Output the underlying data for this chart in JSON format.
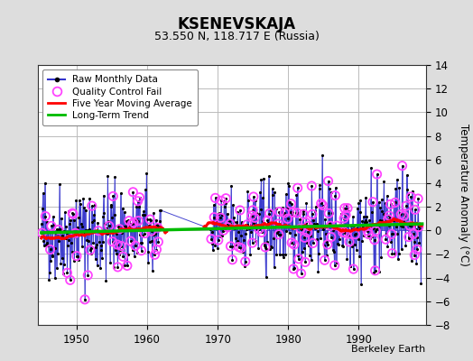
{
  "title": "KSENEVSKAJA",
  "subtitle": "53.550 N, 118.717 E (Russia)",
  "ylabel": "Temperature Anomaly (°C)",
  "credit": "Berkeley Earth",
  "ylim": [
    -8,
    14
  ],
  "yticks": [
    -8,
    -6,
    -4,
    -2,
    0,
    2,
    4,
    6,
    8,
    10,
    12,
    14
  ],
  "xlim": [
    1944.5,
    1999.5
  ],
  "xticks": [
    1950,
    1960,
    1970,
    1980,
    1990
  ],
  "start_year": 1945,
  "end_year": 1998,
  "gap_start": 1962.0,
  "gap_end": 1969.0,
  "colors": {
    "raw_line": "#3333cc",
    "raw_dot": "#000000",
    "qc_fail": "#ff44ff",
    "moving_avg": "#ff0000",
    "trend": "#00bb00",
    "background": "#dddddd",
    "plot_bg": "#ffffff"
  },
  "trend_x": [
    1945,
    1999
  ],
  "trend_y": [
    -0.2,
    0.55
  ],
  "seed": 42
}
